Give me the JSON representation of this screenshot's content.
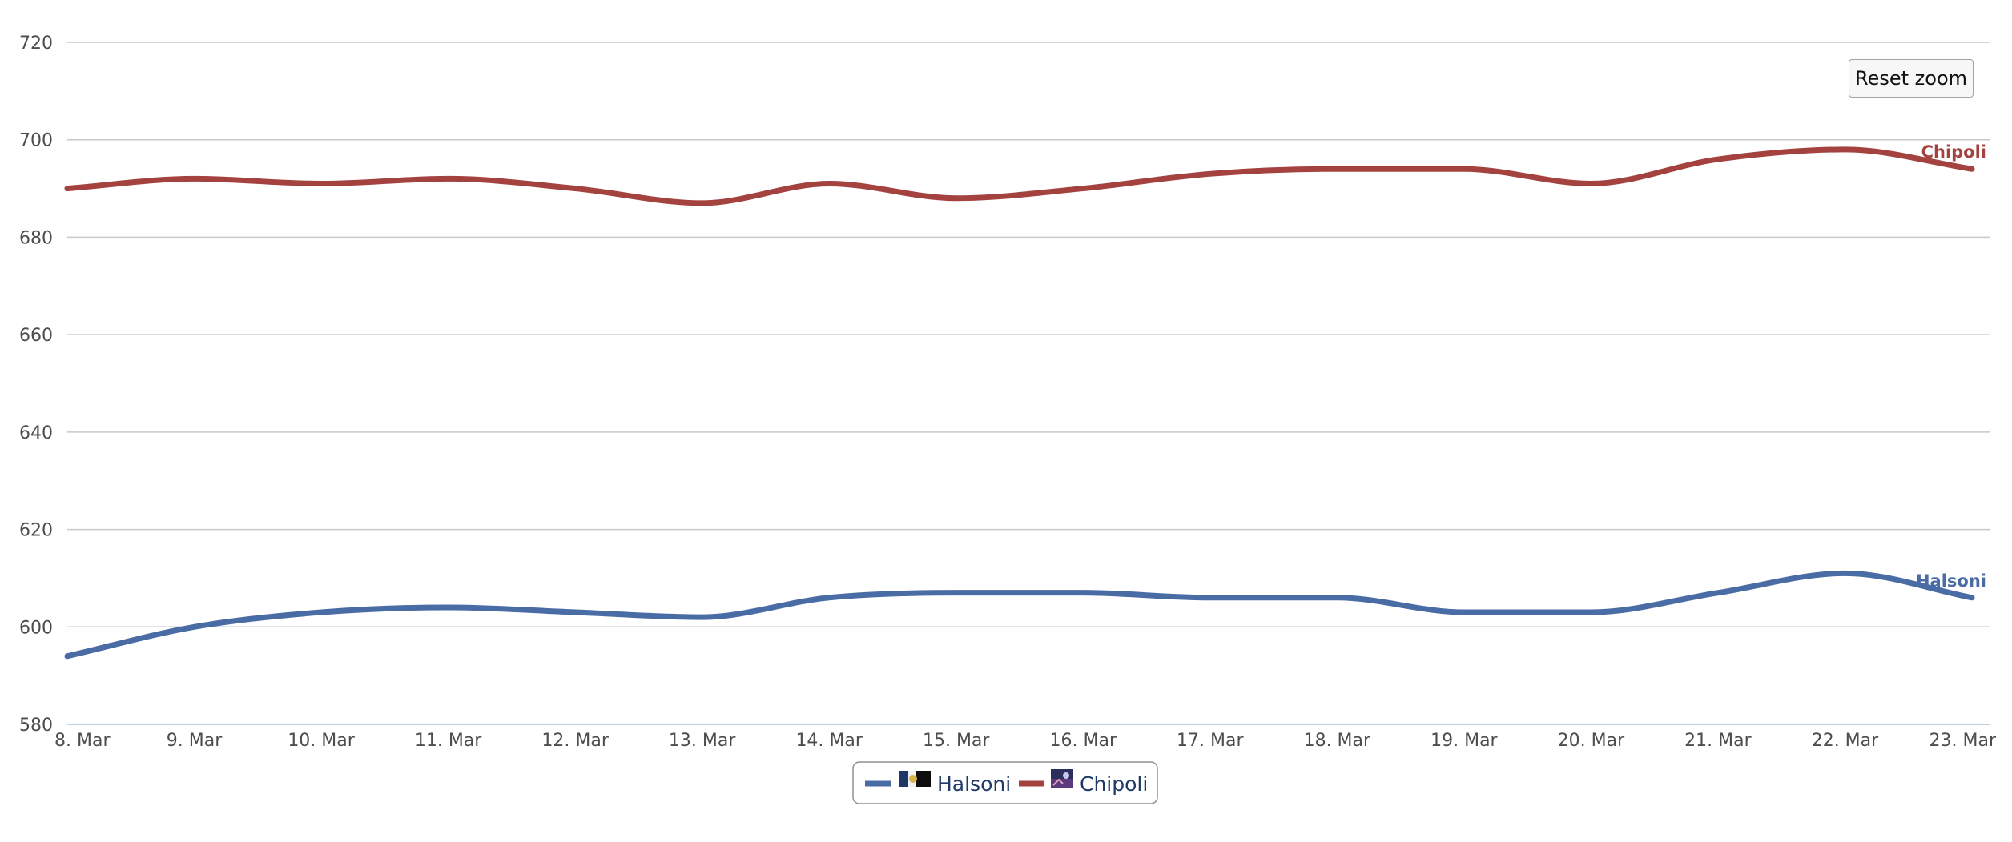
{
  "reset_zoom_label": "Reset zoom",
  "chart_data": {
    "type": "line",
    "title": "",
    "xlabel": "",
    "ylabel": "",
    "ylim": [
      580,
      720
    ],
    "yticks": [
      580,
      600,
      620,
      640,
      660,
      680,
      700,
      720
    ],
    "categories": [
      "8. Mar",
      "9. Mar",
      "10. Mar",
      "11. Mar",
      "12. Mar",
      "13. Mar",
      "14. Mar",
      "15. Mar",
      "16. Mar",
      "17. Mar",
      "18. Mar",
      "19. Mar",
      "20. Mar",
      "21. Mar",
      "22. Mar",
      "23. Mar"
    ],
    "grid": true,
    "legend": "bottom-center",
    "series": [
      {
        "name": "Halsoni",
        "color": "#4a6ca5",
        "icon": "flag-icon",
        "values": [
          594,
          600,
          603,
          604,
          603,
          602,
          606,
          607,
          607,
          606,
          606,
          603,
          603,
          607,
          611,
          606
        ]
      },
      {
        "name": "Chipoli",
        "color": "#a3423f",
        "icon": "flag-icon",
        "values": [
          690,
          692,
          691,
          692,
          690,
          687,
          691,
          688,
          690,
          693,
          694,
          694,
          691,
          696,
          698,
          694
        ]
      }
    ]
  }
}
